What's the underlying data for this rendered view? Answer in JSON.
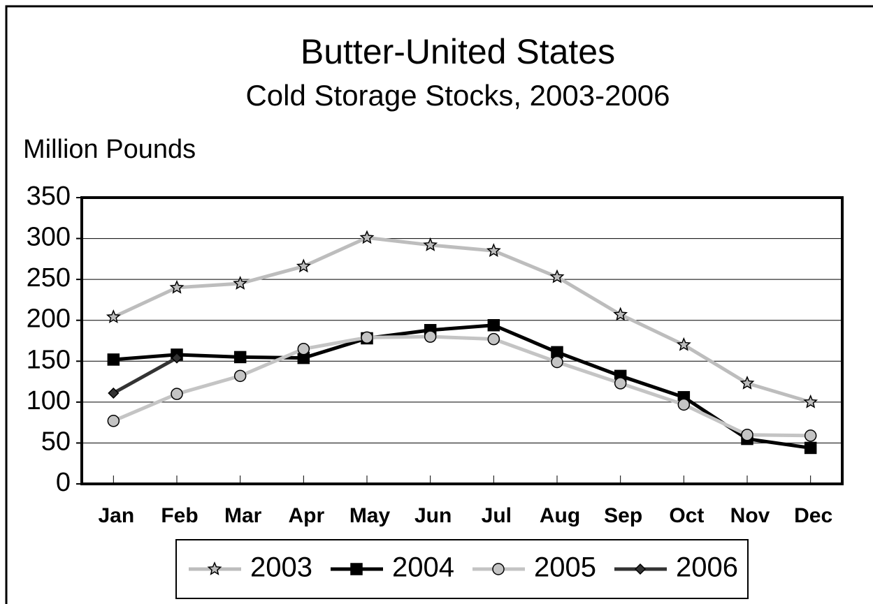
{
  "chart_data": {
    "type": "line",
    "title": "Butter-United States",
    "subtitle": "Cold Storage Stocks, 2003-2006",
    "y_label": "Million Pounds",
    "categories": [
      "Jan",
      "Feb",
      "Mar",
      "Apr",
      "May",
      "Jun",
      "Jul",
      "Aug",
      "Sep",
      "Oct",
      "Nov",
      "Dec"
    ],
    "series": [
      {
        "name": "2003",
        "color": "#bdbdbd",
        "marker": "star",
        "values": [
          204,
          240,
          245,
          266,
          301,
          292,
          285,
          253,
          207,
          170,
          123,
          100
        ]
      },
      {
        "name": "2004",
        "color": "#000000",
        "marker": "square",
        "values": [
          152,
          158,
          155,
          154,
          178,
          188,
          194,
          161,
          132,
          106,
          55,
          44
        ]
      },
      {
        "name": "2005",
        "color": "#c4c4c4",
        "marker": "circle",
        "values": [
          77,
          110,
          132,
          165,
          179,
          180,
          177,
          149,
          123,
          97,
          60,
          59
        ]
      },
      {
        "name": "2006",
        "color": "#333333",
        "marker": "diamond",
        "values": [
          111,
          154,
          null,
          null,
          null,
          null,
          null,
          null,
          null,
          null,
          null,
          null
        ]
      }
    ],
    "ylim": [
      0,
      350
    ],
    "yticks": [
      0,
      50,
      100,
      150,
      200,
      250,
      300,
      350
    ],
    "grid": true,
    "legend": "bottom"
  }
}
